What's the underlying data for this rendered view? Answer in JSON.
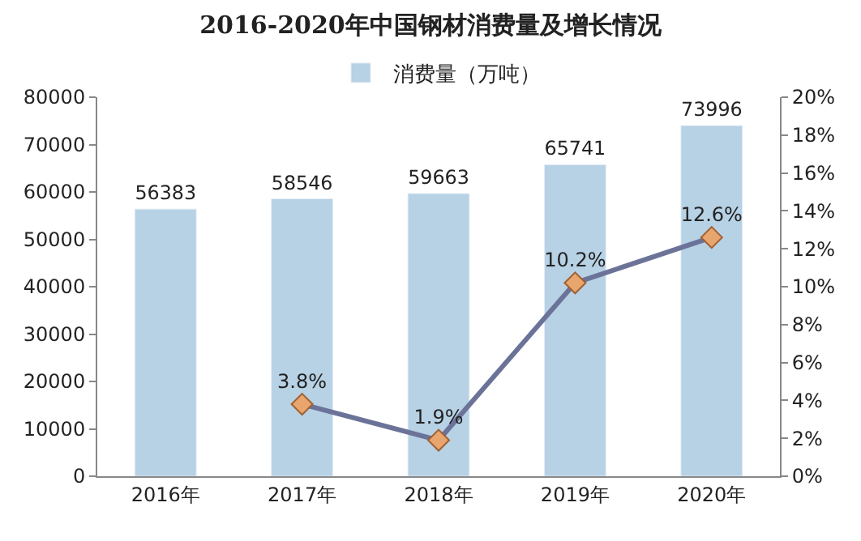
{
  "chart_data": {
    "type": "bar",
    "title": "2016-2020年中国钢材消费量及增长情况",
    "categories": [
      "2016年",
      "2017年",
      "2018年",
      "2019年",
      "2020年"
    ],
    "series": [
      {
        "name": "消费量（万吨）",
        "color": "#b7d1e5",
        "values": [
          56383,
          58546,
          59663,
          65741,
          73996
        ],
        "value_labels": [
          "56383",
          "58546",
          "59663",
          "65741",
          "73996"
        ]
      },
      {
        "type": "line",
        "axis": "y2",
        "color": "#6b7398",
        "marker": "diamond",
        "values": [
          null,
          3.8,
          1.9,
          10.2,
          12.6
        ],
        "value_labels": [
          null,
          "3.8%",
          "1.9%",
          "10.2%",
          "12.6%"
        ]
      }
    ],
    "ylim": [
      0,
      80000
    ],
    "yticks": [
      0,
      10000,
      20000,
      30000,
      40000,
      50000,
      60000,
      70000,
      80000
    ],
    "y2lim": [
      0,
      20
    ],
    "y2ticks": [
      {
        "value": 0,
        "label": "0%"
      },
      {
        "value": 2,
        "label": "2%"
      },
      {
        "value": 4,
        "label": "4%"
      },
      {
        "value": 6,
        "label": "6%"
      },
      {
        "value": 8,
        "label": "8%"
      },
      {
        "value": 10,
        "label": "10%"
      },
      {
        "value": 12,
        "label": "12%"
      },
      {
        "value": 14,
        "label": "14%"
      },
      {
        "value": 16,
        "label": "16%"
      },
      {
        "value": 18,
        "label": "18%"
      },
      {
        "value": 20,
        "label": "20%"
      }
    ],
    "legend": "top"
  }
}
